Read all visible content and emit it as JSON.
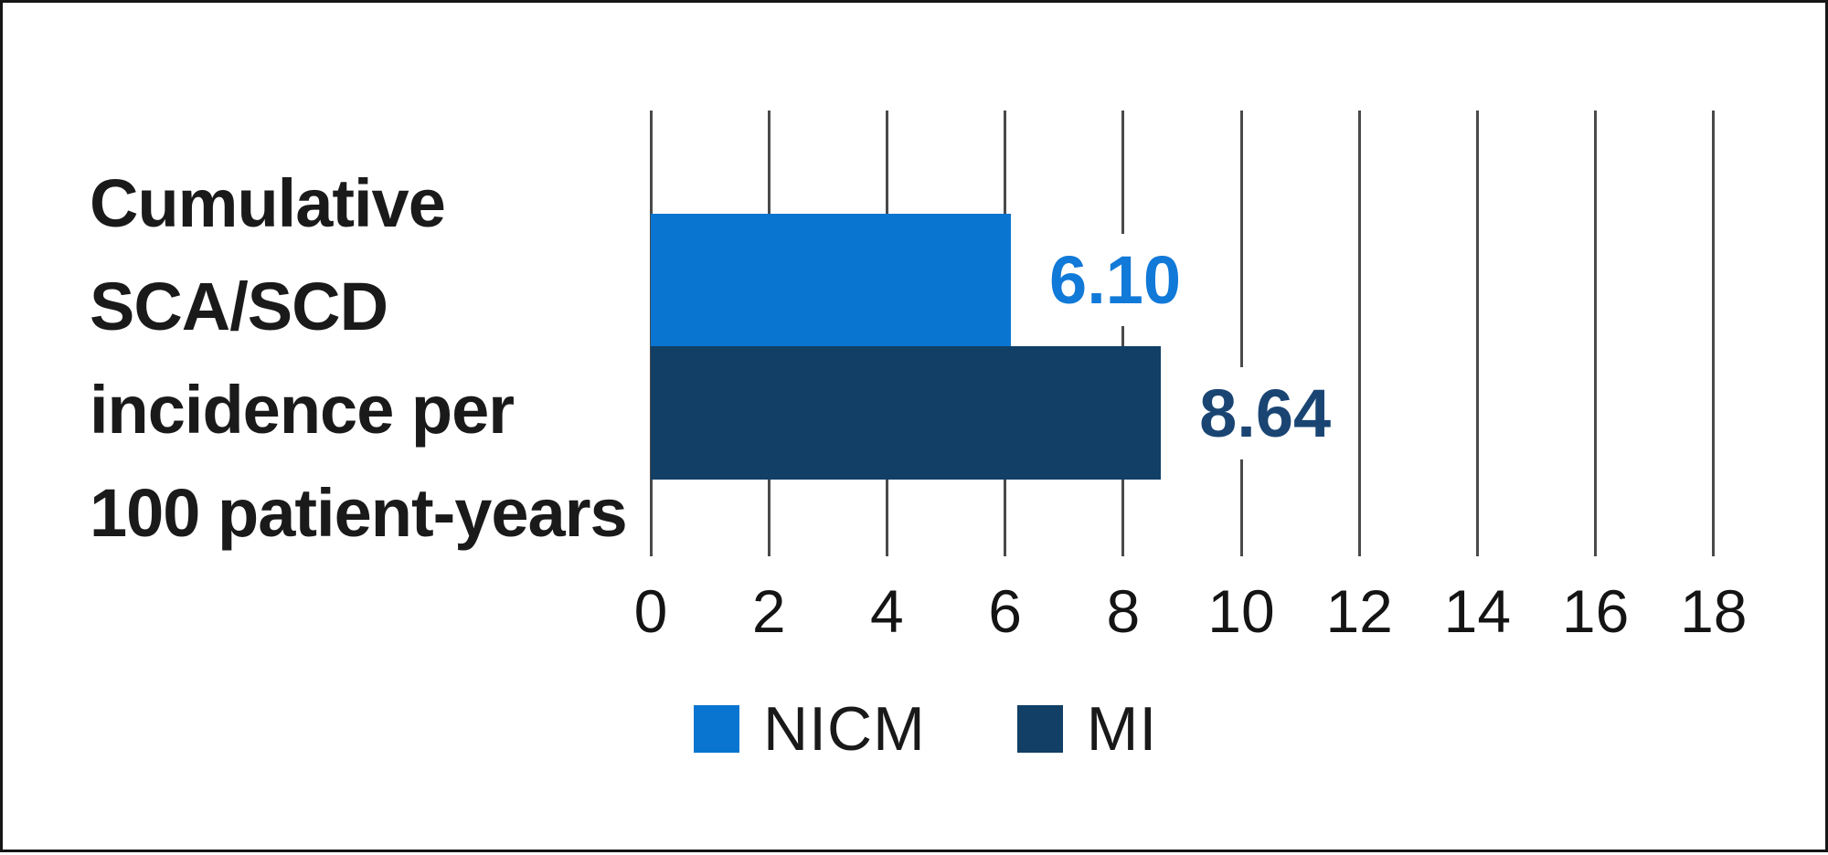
{
  "frame": {
    "background": "#ffffff",
    "border_color": "#161616"
  },
  "chart_data": {
    "type": "bar",
    "orientation": "horizontal",
    "title": "Cumulative SCA/SCD incidence per 100 patient-years",
    "title_lines": "Cumulative\nSCA/SCD\nincidence per\n100 patient-years",
    "categories": [
      "NICM",
      "MI"
    ],
    "values": [
      6.1,
      8.64
    ],
    "value_labels": [
      "6.10",
      "8.64"
    ],
    "series_colors": [
      "#0975D0",
      "#113F66"
    ],
    "value_label_colors": [
      "#1179D8",
      "#1A4573"
    ],
    "xlabel": "",
    "ylabel": "",
    "xlim": [
      0,
      18
    ],
    "x_ticks": [
      0,
      2,
      4,
      6,
      8,
      10,
      12,
      14,
      16,
      18
    ],
    "grid": true,
    "gridline_color": "#4A4A4A",
    "tick_label_color": "#141414",
    "legend": {
      "position": "bottom",
      "entries": [
        {
          "label": "NICM",
          "color": "#0975D0"
        },
        {
          "label": "MI",
          "color": "#113F66"
        }
      ]
    }
  }
}
